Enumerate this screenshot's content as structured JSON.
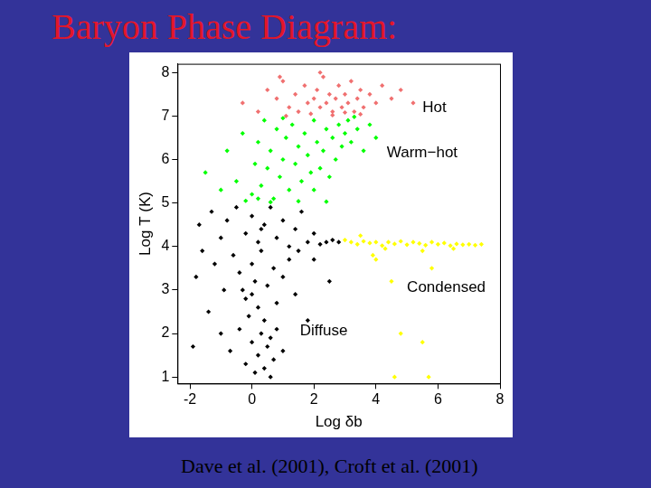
{
  "chart_data": {
    "type": "scatter",
    "title": "Baryon Phase Diagram:",
    "caption": "Dave et al. (2001), Croft et al. (2001)",
    "x_label": "Log δb",
    "y_label": "Log T (K)",
    "xlim": [
      -2.4,
      8
    ],
    "xticks": [
      -2,
      0,
      2,
      4,
      6,
      8
    ],
    "ylim": [
      0.85,
      8.2
    ],
    "yticks": [
      1,
      2,
      3,
      4,
      5,
      6,
      7,
      8
    ],
    "grid": false,
    "marker": "diamond",
    "annotations": [
      {
        "text": "Hot",
        "x": 5.5,
        "y": 7.18
      },
      {
        "text": "Warm−hot",
        "x": 4.35,
        "y": 6.15
      },
      {
        "text": "Condensed",
        "x": 5.0,
        "y": 3.05
      },
      {
        "text": "Diffuse",
        "x": 1.55,
        "y": 2.05
      }
    ],
    "series": [
      {
        "name": "Diffuse",
        "color": "#000000",
        "points": [
          [
            -1.7,
            4.5
          ],
          [
            -1.3,
            4.8
          ],
          [
            -1.0,
            4.2
          ],
          [
            -0.8,
            4.6
          ],
          [
            -0.5,
            4.9
          ],
          [
            -0.2,
            4.3
          ],
          [
            0,
            4.7
          ],
          [
            0.2,
            4.1
          ],
          [
            0.4,
            4.5
          ],
          [
            0.6,
            4.9
          ],
          [
            0.8,
            4.2
          ],
          [
            1.0,
            4.6
          ],
          [
            1.2,
            4.0
          ],
          [
            1.4,
            4.4
          ],
          [
            1.6,
            4.8
          ],
          [
            1.8,
            4.1
          ],
          [
            2.0,
            4.3
          ],
          [
            2.2,
            4.05
          ],
          [
            2.4,
            4.1
          ],
          [
            2.6,
            4.15
          ],
          [
            2.8,
            4.1
          ],
          [
            1.5,
            3.9
          ],
          [
            -1.6,
            3.9
          ],
          [
            -1.8,
            3.3
          ],
          [
            -1.2,
            3.6
          ],
          [
            -0.9,
            3.0
          ],
          [
            -0.6,
            3.8
          ],
          [
            -0.4,
            3.4
          ],
          [
            -0.2,
            2.8
          ],
          [
            0,
            3.6
          ],
          [
            0.1,
            3.2
          ],
          [
            0.2,
            2.6
          ],
          [
            0.3,
            3.9
          ],
          [
            0.4,
            2.3
          ],
          [
            0.5,
            3.1
          ],
          [
            0.6,
            1.9
          ],
          [
            0.7,
            3.5
          ],
          [
            0.8,
            2.7
          ],
          [
            1.0,
            3.3
          ],
          [
            1.2,
            3.7
          ],
          [
            1.4,
            2.9
          ],
          [
            2.0,
            3.7
          ],
          [
            2.5,
            3.2
          ],
          [
            1.8,
            2.3
          ],
          [
            -1.4,
            2.5
          ],
          [
            -1.0,
            2.0
          ],
          [
            -0.7,
            1.6
          ],
          [
            -0.4,
            2.1
          ],
          [
            -0.2,
            1.3
          ],
          [
            0,
            1.8
          ],
          [
            0.1,
            1.1
          ],
          [
            0.2,
            1.5
          ],
          [
            0.3,
            2.0
          ],
          [
            0.4,
            1.2
          ],
          [
            0.5,
            1.7
          ],
          [
            0.6,
            1.0
          ],
          [
            0.7,
            1.4
          ],
          [
            0.8,
            2.1
          ],
          [
            1.0,
            1.6
          ],
          [
            -1.9,
            1.7
          ],
          [
            -0.1,
            2.4
          ],
          [
            0.0,
            2.9
          ],
          [
            0.3,
            4.4
          ],
          [
            -0.3,
            3.0
          ]
        ]
      },
      {
        "name": "Condensed",
        "color": "#ffff00",
        "points": [
          [
            3.0,
            4.15
          ],
          [
            3.2,
            4.1
          ],
          [
            3.4,
            4.05
          ],
          [
            3.6,
            4.12
          ],
          [
            3.8,
            4.08
          ],
          [
            4.0,
            4.1
          ],
          [
            4.2,
            4.02
          ],
          [
            4.4,
            4.1
          ],
          [
            4.6,
            4.06
          ],
          [
            4.8,
            4.12
          ],
          [
            5.0,
            4.04
          ],
          [
            5.2,
            4.1
          ],
          [
            5.4,
            4.07
          ],
          [
            5.6,
            4.03
          ],
          [
            5.8,
            4.1
          ],
          [
            6.0,
            4.05
          ],
          [
            6.2,
            4.08
          ],
          [
            6.4,
            4.02
          ],
          [
            6.6,
            4.06
          ],
          [
            6.8,
            4.04
          ],
          [
            7.0,
            4.05
          ],
          [
            7.2,
            4.03
          ],
          [
            7.4,
            4.05
          ],
          [
            3.5,
            4.25
          ],
          [
            4.3,
            3.95
          ],
          [
            5.5,
            3.9
          ],
          [
            4.5,
            3.2
          ],
          [
            5.8,
            3.5
          ],
          [
            4.0,
            3.7
          ],
          [
            4.8,
            2.0
          ],
          [
            5.5,
            1.8
          ],
          [
            4.6,
            1.0
          ],
          [
            5.7,
            1.0
          ],
          [
            3.9,
            3.8
          ],
          [
            6.5,
            3.95
          ]
        ]
      },
      {
        "name": "Warm−hot",
        "color": "#00ff00",
        "points": [
          [
            -1.5,
            5.7
          ],
          [
            -1.0,
            5.3
          ],
          [
            -0.8,
            6.2
          ],
          [
            -0.5,
            5.5
          ],
          [
            -0.3,
            6.6
          ],
          [
            0,
            5.2
          ],
          [
            0.1,
            5.9
          ],
          [
            0.2,
            6.4
          ],
          [
            0.3,
            5.4
          ],
          [
            0.4,
            6.9
          ],
          [
            0.5,
            5.8
          ],
          [
            0.6,
            6.2
          ],
          [
            0.7,
            5.1
          ],
          [
            0.8,
            6.7
          ],
          [
            0.9,
            5.6
          ],
          [
            1.0,
            6.0
          ],
          [
            1.1,
            6.5
          ],
          [
            1.2,
            5.3
          ],
          [
            1.3,
            6.8
          ],
          [
            1.4,
            5.9
          ],
          [
            1.5,
            6.3
          ],
          [
            1.6,
            5.5
          ],
          [
            1.7,
            6.6
          ],
          [
            1.8,
            6.1
          ],
          [
            1.9,
            5.7
          ],
          [
            2.0,
            6.9
          ],
          [
            2.1,
            6.4
          ],
          [
            2.2,
            5.8
          ],
          [
            2.3,
            6.2
          ],
          [
            2.4,
            6.7
          ],
          [
            2.5,
            5.6
          ],
          [
            2.6,
            6.5
          ],
          [
            2.7,
            6.0
          ],
          [
            2.8,
            6.8
          ],
          [
            2.9,
            6.3
          ],
          [
            3.0,
            6.6
          ],
          [
            3.1,
            6.9
          ],
          [
            3.2,
            6.4
          ],
          [
            3.4,
            6.7
          ],
          [
            3.6,
            6.2
          ],
          [
            3.8,
            6.8
          ],
          [
            4.0,
            6.5
          ],
          [
            -0.2,
            5.05
          ],
          [
            0.6,
            5.02
          ],
          [
            1.5,
            5.04
          ],
          [
            2.4,
            5.03
          ],
          [
            1.0,
            6.95
          ],
          [
            2.0,
            5.3
          ],
          [
            0.2,
            5.1
          ],
          [
            3.3,
            6.98
          ]
        ]
      },
      {
        "name": "Hot",
        "color": "#f07070",
        "points": [
          [
            -0.3,
            7.3
          ],
          [
            0.2,
            7.1
          ],
          [
            0.5,
            7.6
          ],
          [
            0.8,
            7.4
          ],
          [
            1.0,
            7.8
          ],
          [
            1.2,
            7.2
          ],
          [
            1.4,
            7.5
          ],
          [
            1.5,
            7.1
          ],
          [
            1.7,
            7.7
          ],
          [
            1.8,
            7.3
          ],
          [
            2.0,
            7.4
          ],
          [
            2.1,
            7.6
          ],
          [
            2.2,
            7.2
          ],
          [
            2.3,
            7.9
          ],
          [
            2.4,
            7.3
          ],
          [
            2.5,
            7.5
          ],
          [
            2.6,
            7.1
          ],
          [
            2.7,
            7.4
          ],
          [
            2.8,
            7.7
          ],
          [
            2.9,
            7.2
          ],
          [
            3.0,
            7.5
          ],
          [
            3.1,
            7.3
          ],
          [
            3.2,
            7.8
          ],
          [
            3.3,
            7.1
          ],
          [
            3.4,
            7.4
          ],
          [
            3.5,
            7.6
          ],
          [
            3.6,
            7.2
          ],
          [
            3.8,
            7.5
          ],
          [
            4.0,
            7.3
          ],
          [
            4.2,
            7.7
          ],
          [
            4.5,
            7.4
          ],
          [
            4.8,
            7.6
          ],
          [
            5.2,
            7.3
          ],
          [
            1.1,
            7.0
          ],
          [
            1.9,
            7.05
          ],
          [
            2.6,
            7.02
          ],
          [
            3.0,
            7.08
          ],
          [
            3.5,
            7.04
          ],
          [
            2.2,
            8.0
          ],
          [
            0.9,
            7.9
          ]
        ]
      }
    ]
  }
}
